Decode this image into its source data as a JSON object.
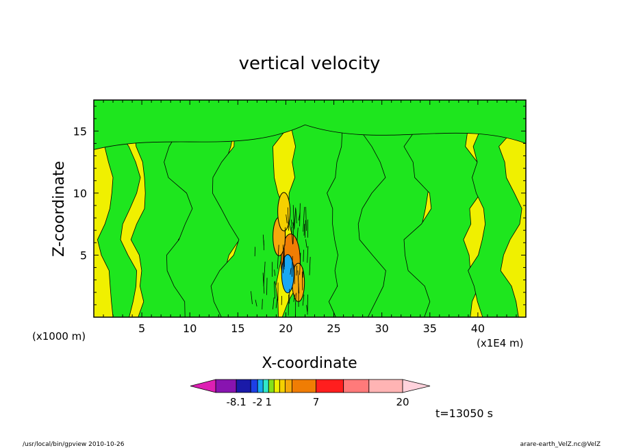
{
  "chart_data": {
    "type": "heatmap",
    "title": "vertical velocity",
    "xlabel": "X-coordinate",
    "ylabel": "Z-coordinate",
    "x_unit_left": "(x1000 m)",
    "x_unit_right": "(x1E4 m)",
    "xlim": [
      0,
      45
    ],
    "ylim": [
      0,
      17.5
    ],
    "x_ticks": [
      5,
      10,
      15,
      20,
      25,
      30,
      35,
      40
    ],
    "y_ticks": [
      5,
      10,
      15
    ],
    "colorbar": {
      "colors": [
        "#dd1fb3",
        "#8814b0",
        "#1a1aa8",
        "#1d3fe6",
        "#19a8f2",
        "#30e8c8",
        "#86e01b",
        "#f0f000",
        "#f5d000",
        "#f5a80c",
        "#f07d04",
        "#ff1e1e",
        "#ff7a7a",
        "#ffb4b4",
        "#ffd2dc"
      ],
      "labels": [
        "-8.1",
        "-2",
        "1",
        "7",
        "20"
      ]
    },
    "base_color": "#f0f000",
    "contour_color": "#1ee61e",
    "cores": [
      {
        "x": 20.5,
        "z": 4.5,
        "w": 9.0
      },
      {
        "x": 19.3,
        "z": 6.5,
        "w": 3.5
      },
      {
        "x": 21.3,
        "z": 2.8,
        "w": 3.5
      },
      {
        "x": 19.8,
        "z": 8.5,
        "w": 2.0
      },
      {
        "x": 20.2,
        "z": 3.5,
        "w": -3.0
      }
    ],
    "time_label": "t=13050 s"
  },
  "footer": {
    "left": "/usr/local/bin/gpview  2010-10-26",
    "right": "arare-earth_VelZ.nc@VelZ"
  }
}
